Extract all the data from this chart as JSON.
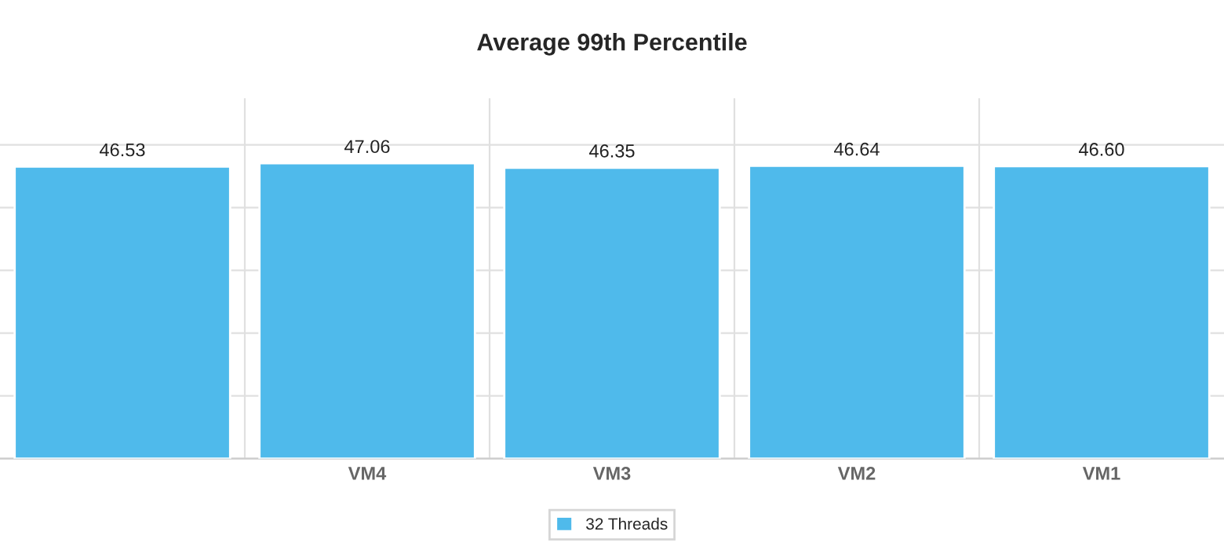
{
  "chart_data": {
    "type": "bar",
    "title": "Average 99th Percentile",
    "categories": [
      null,
      "VM4",
      "VM3",
      "VM2",
      "VM1"
    ],
    "series": [
      {
        "name": "32 Threads",
        "color": "#4fbaeb",
        "values": [
          46.53,
          47.06,
          46.35,
          46.64,
          46.6
        ],
        "value_labels": [
          "46.53",
          "47.06",
          "46.35",
          "46.64",
          "46.60"
        ]
      }
    ],
    "grid": true,
    "legend": "bottom",
    "tick_labels": "x"
  }
}
